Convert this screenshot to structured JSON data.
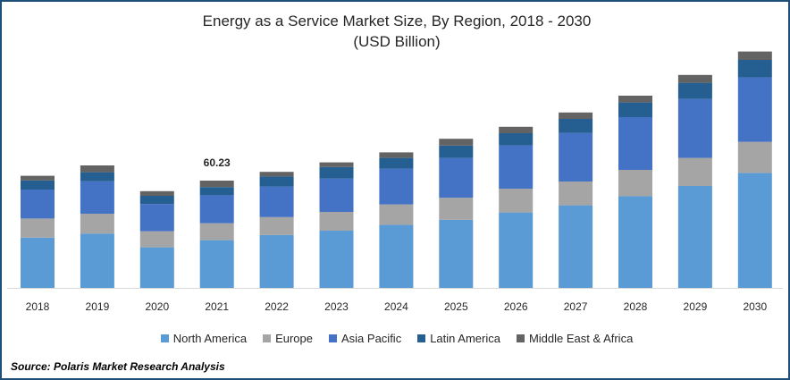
{
  "chart_data": {
    "type": "bar",
    "stacked": true,
    "title": "Energy as a Service Market Size, By Region, 2018 - 2030",
    "subtitle": "(USD Billion)",
    "categories": [
      "2018",
      "2019",
      "2020",
      "2021",
      "2022",
      "2023",
      "2024",
      "2025",
      "2026",
      "2027",
      "2028",
      "2029",
      "2030"
    ],
    "series": [
      {
        "name": "North America",
        "color": "#5b9bd5",
        "values": [
          28.1,
          30.4,
          22.7,
          26.7,
          29.6,
          32.0,
          35.3,
          38.1,
          42.2,
          46.2,
          51.3,
          57.0,
          64.3
        ]
      },
      {
        "name": "Europe",
        "color": "#a5a5a5",
        "values": [
          10.7,
          11.1,
          9.0,
          9.5,
          10.0,
          10.5,
          11.4,
          12.3,
          13.3,
          13.3,
          14.7,
          15.7,
          17.4
        ]
      },
      {
        "name": "Asia Pacific",
        "color": "#4472c4",
        "values": [
          16.2,
          18.1,
          15.2,
          15.6,
          17.1,
          18.7,
          20.0,
          22.3,
          24.2,
          27.2,
          29.5,
          32.9,
          36.0
        ]
      },
      {
        "name": "Latin America",
        "color": "#255e91",
        "values": [
          5.1,
          5.1,
          4.6,
          4.6,
          5.6,
          6.4,
          6.0,
          6.9,
          6.8,
          7.8,
          8.2,
          9.1,
          9.8
        ]
      },
      {
        "name": "Middle East & Africa",
        "color": "#636363",
        "values": [
          2.6,
          3.8,
          2.6,
          3.6,
          2.6,
          2.6,
          3.1,
          3.8,
          3.6,
          3.6,
          3.8,
          4.4,
          4.7
        ]
      }
    ],
    "annotations": [
      {
        "category": "2021",
        "text": "60.23"
      }
    ],
    "ylim": [
      0,
      135
    ],
    "xlabel": "",
    "ylabel": "",
    "grid": false,
    "legend_position": "bottom"
  },
  "source": "Source: Polaris  Market Research Analysis"
}
